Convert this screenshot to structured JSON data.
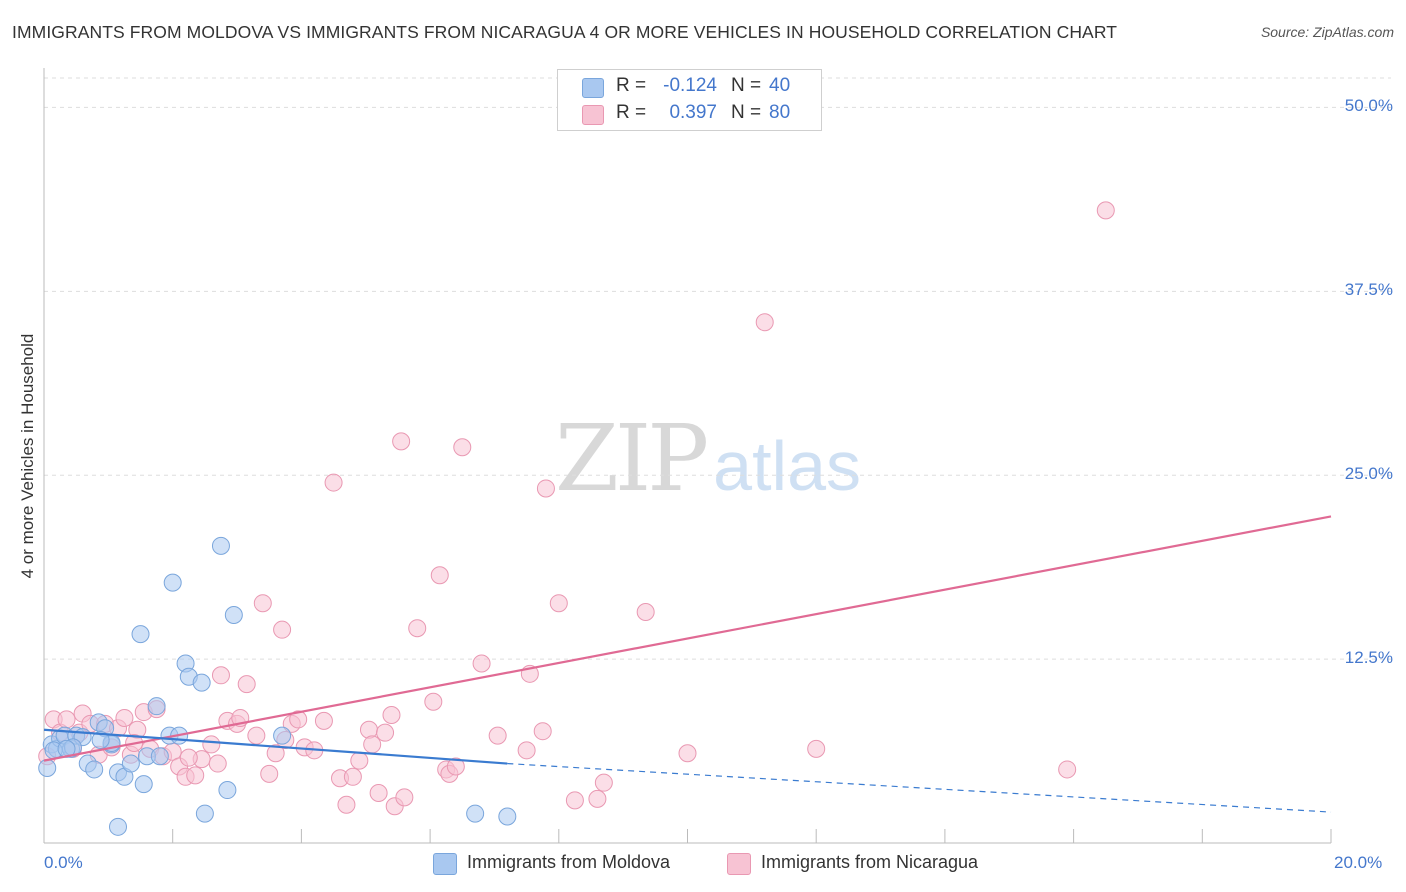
{
  "title": "IMMIGRANTS FROM MOLDOVA VS IMMIGRANTS FROM NICARAGUA 4 OR MORE VEHICLES IN HOUSEHOLD CORRELATION CHART",
  "source": "Source: ZipAtlas.com",
  "watermark": {
    "zip": "ZIP",
    "atlas": "atlas"
  },
  "colors": {
    "moldova_fill": "#a9c8f0",
    "moldova_stroke": "#7aa6dc",
    "moldova_line": "#3a7bd0",
    "nicaragua_fill": "#f7c3d3",
    "nicaragua_stroke": "#e998b2",
    "nicaragua_line": "#e06a94",
    "accent_text": "#4477cc",
    "grid": "#dddddd"
  },
  "stats": [
    {
      "r_label": "R =",
      "r_value": "-0.124",
      "n_label": "N =",
      "n_value": "40"
    },
    {
      "r_label": "R =",
      "r_value": "0.397",
      "n_label": "N =",
      "n_value": "80"
    }
  ],
  "legend": [
    "Immigrants from Moldova",
    "Immigrants from Nicaragua"
  ],
  "chart_data": {
    "type": "scatter",
    "title": "IMMIGRANTS FROM MOLDOVA VS IMMIGRANTS FROM NICARAGUA 4 OR MORE VEHICLES IN HOUSEHOLD CORRELATION CHART",
    "xlabel": "",
    "ylabel": "4 or more Vehicles in Household",
    "xlim": [
      0,
      20
    ],
    "ylim": [
      0,
      52
    ],
    "x_tick_labels": [
      "0.0%",
      "20.0%"
    ],
    "y_ticks": [
      12.5,
      25.0,
      37.5,
      50.0
    ],
    "y_tick_labels": [
      "12.5%",
      "25.0%",
      "37.5%",
      "50.0%"
    ],
    "grid": true,
    "legend_position": "bottom-center",
    "series": [
      {
        "name": "Immigrants from Moldova",
        "points": [
          [
            0.05,
            5.1
          ],
          [
            0.12,
            6.7
          ],
          [
            0.2,
            6.4
          ],
          [
            0.25,
            7.1
          ],
          [
            0.32,
            7.3
          ],
          [
            0.42,
            6.4
          ],
          [
            0.5,
            7.3
          ],
          [
            0.6,
            7.2
          ],
          [
            0.68,
            5.4
          ],
          [
            0.78,
            5.0
          ],
          [
            0.85,
            8.2
          ],
          [
            0.95,
            7.8
          ],
          [
            1.05,
            6.7
          ],
          [
            1.15,
            4.8
          ],
          [
            1.25,
            4.5
          ],
          [
            1.35,
            5.4
          ],
          [
            1.5,
            14.2
          ],
          [
            1.55,
            4.0
          ],
          [
            1.6,
            5.9
          ],
          [
            1.75,
            9.3
          ],
          [
            1.8,
            5.9
          ],
          [
            1.95,
            7.3
          ],
          [
            2.0,
            17.7
          ],
          [
            2.1,
            7.3
          ],
          [
            2.2,
            12.2
          ],
          [
            2.25,
            11.3
          ],
          [
            2.45,
            10.9
          ],
          [
            2.5,
            2.0
          ],
          [
            2.75,
            20.2
          ],
          [
            2.85,
            3.6
          ],
          [
            2.95,
            15.5
          ],
          [
            3.7,
            7.3
          ],
          [
            1.15,
            1.1
          ],
          [
            0.15,
            6.3
          ],
          [
            0.45,
            6.5
          ],
          [
            1.05,
            6.8
          ],
          [
            0.35,
            6.4
          ],
          [
            0.88,
            7.0
          ],
          [
            6.7,
            2.0
          ],
          [
            7.2,
            1.8
          ]
        ],
        "trend": {
          "x0": 0,
          "y0": 7.7,
          "x1_solid": 7.2,
          "y1_solid": 5.4,
          "x1_dashed": 20,
          "y1_dashed": 2.1
        }
      },
      {
        "name": "Immigrants from Nicaragua",
        "points": [
          [
            0.05,
            5.9
          ],
          [
            0.15,
            8.4
          ],
          [
            0.25,
            7.5
          ],
          [
            0.35,
            8.4
          ],
          [
            0.45,
            6.4
          ],
          [
            0.55,
            7.5
          ],
          [
            0.6,
            8.8
          ],
          [
            0.72,
            8.1
          ],
          [
            0.85,
            6.0
          ],
          [
            0.95,
            8.1
          ],
          [
            1.05,
            6.5
          ],
          [
            1.15,
            7.8
          ],
          [
            1.25,
            8.5
          ],
          [
            1.35,
            6.0
          ],
          [
            1.45,
            7.7
          ],
          [
            1.55,
            8.9
          ],
          [
            1.65,
            6.4
          ],
          [
            1.75,
            9.1
          ],
          [
            1.85,
            5.9
          ],
          [
            2.0,
            6.2
          ],
          [
            2.1,
            5.2
          ],
          [
            2.2,
            4.5
          ],
          [
            2.35,
            4.6
          ],
          [
            2.45,
            5.7
          ],
          [
            2.6,
            6.7
          ],
          [
            2.7,
            5.4
          ],
          [
            2.75,
            11.4
          ],
          [
            2.85,
            8.3
          ],
          [
            3.0,
            8.1
          ],
          [
            3.05,
            8.5
          ],
          [
            3.15,
            10.8
          ],
          [
            3.3,
            7.3
          ],
          [
            3.4,
            16.3
          ],
          [
            3.5,
            4.7
          ],
          [
            3.6,
            6.1
          ],
          [
            3.7,
            14.5
          ],
          [
            3.75,
            7.0
          ],
          [
            3.85,
            8.1
          ],
          [
            3.95,
            8.4
          ],
          [
            4.05,
            6.5
          ],
          [
            4.2,
            6.3
          ],
          [
            4.35,
            8.3
          ],
          [
            4.5,
            24.5
          ],
          [
            4.6,
            4.4
          ],
          [
            4.7,
            2.6
          ],
          [
            4.8,
            4.5
          ],
          [
            4.9,
            5.6
          ],
          [
            5.05,
            7.7
          ],
          [
            5.1,
            6.7
          ],
          [
            5.2,
            3.4
          ],
          [
            5.3,
            7.5
          ],
          [
            5.4,
            8.7
          ],
          [
            5.45,
            2.5
          ],
          [
            5.55,
            27.3
          ],
          [
            5.6,
            3.1
          ],
          [
            5.8,
            14.6
          ],
          [
            6.05,
            9.6
          ],
          [
            6.15,
            18.2
          ],
          [
            6.25,
            5.0
          ],
          [
            6.3,
            4.7
          ],
          [
            6.4,
            5.2
          ],
          [
            6.5,
            26.9
          ],
          [
            6.8,
            12.2
          ],
          [
            7.05,
            7.3
          ],
          [
            7.5,
            6.3
          ],
          [
            7.55,
            11.5
          ],
          [
            7.75,
            7.6
          ],
          [
            7.8,
            24.1
          ],
          [
            8.0,
            16.3
          ],
          [
            8.25,
            2.9
          ],
          [
            8.6,
            3.0
          ],
          [
            8.7,
            4.1
          ],
          [
            9.35,
            15.7
          ],
          [
            10.0,
            6.1
          ],
          [
            11.2,
            35.4
          ],
          [
            12.0,
            6.4
          ],
          [
            15.9,
            5.0
          ],
          [
            16.5,
            43.0
          ],
          [
            1.4,
            6.8
          ],
          [
            2.25,
            5.8
          ]
        ],
        "trend": {
          "x0": 0,
          "y0": 5.6,
          "x1": 20,
          "y1": 22.2
        }
      }
    ]
  }
}
